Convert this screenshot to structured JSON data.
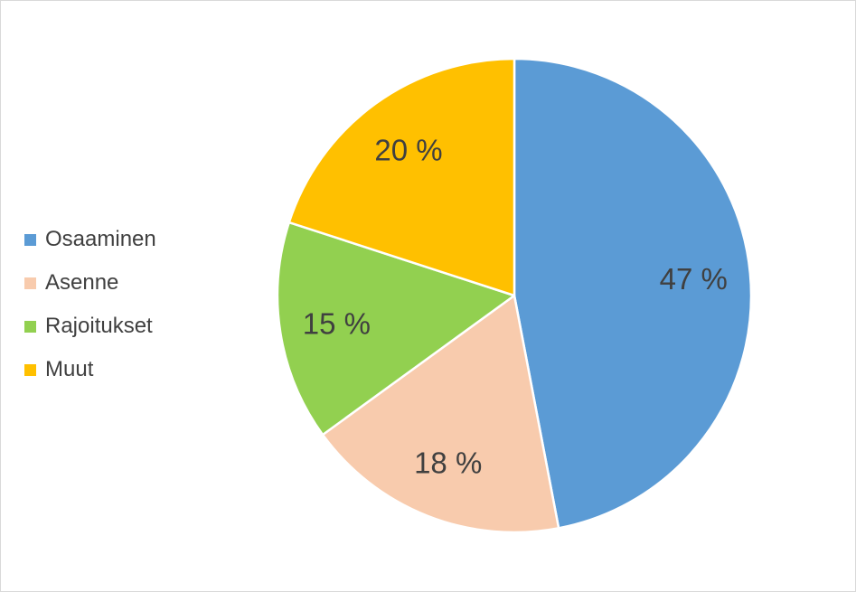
{
  "chart_data": {
    "type": "pie",
    "categories": [
      "Osaaminen",
      "Asenne",
      "Rajoitukset",
      "Muut"
    ],
    "values": [
      47,
      18,
      15,
      20
    ],
    "labels": [
      "47 %",
      "18 %",
      "15 %",
      "20 %"
    ],
    "colors": [
      "#5b9bd5",
      "#f8cbad",
      "#92d050",
      "#ffc000"
    ],
    "legend_position": "left",
    "start_angle_deg": 0,
    "direction": "clockwise"
  }
}
